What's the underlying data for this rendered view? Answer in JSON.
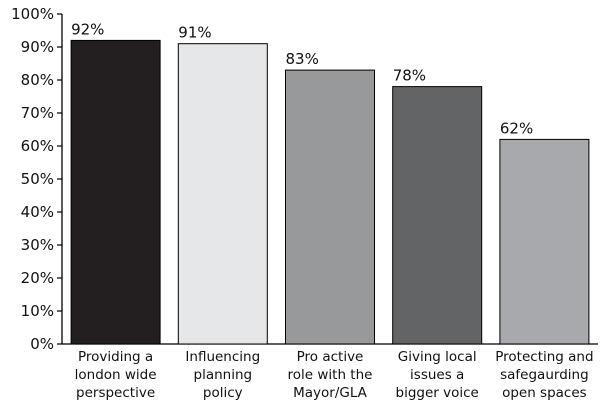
{
  "chart_data": {
    "type": "bar",
    "categories": [
      [
        "Providing a",
        "london wide",
        "perspective"
      ],
      [
        "Influencing",
        "planning",
        "policy"
      ],
      [
        "Pro active",
        "role with the",
        "Mayor/GLA"
      ],
      [
        "Giving local",
        "issues a",
        "bigger voice"
      ],
      [
        "Protecting and",
        "safegaurding",
        "open spaces"
      ]
    ],
    "values": [
      92,
      91,
      83,
      78,
      62
    ],
    "data_labels": [
      "92%",
      "91%",
      "83%",
      "78%",
      "62%"
    ],
    "bar_colors": [
      "#231f20",
      "#e6e7e8",
      "#98999b",
      "#636466",
      "#a7a9ac"
    ],
    "ylim": [
      0,
      100
    ],
    "yticks": [
      0,
      10,
      20,
      30,
      40,
      50,
      60,
      70,
      80,
      90,
      100
    ],
    "ytick_labels": [
      "0%",
      "10%",
      "20%",
      "30%",
      "40%",
      "50%",
      "60%",
      "70%",
      "80%",
      "90%",
      "100%"
    ],
    "grid": false,
    "title": "",
    "xlabel": "",
    "ylabel": ""
  }
}
